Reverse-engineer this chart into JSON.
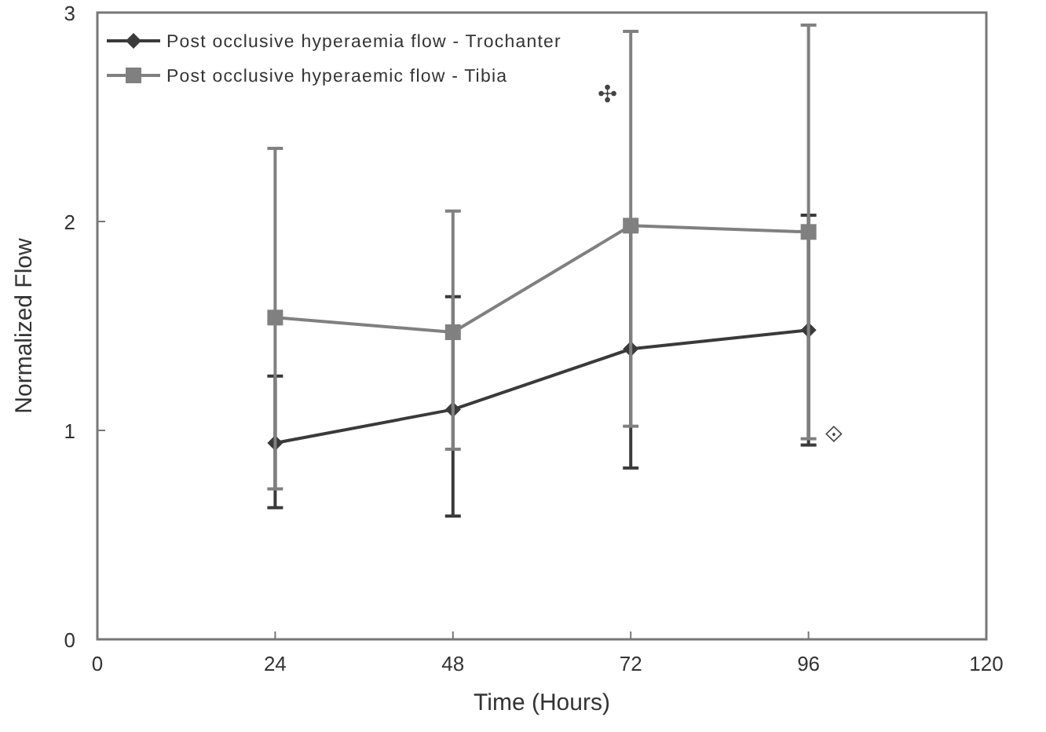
{
  "chart_data": {
    "type": "line",
    "xlabel": "Time (Hours)",
    "ylabel": "Normalized Flow",
    "xlim": [
      0,
      120
    ],
    "xticks": [
      0,
      24,
      48,
      72,
      96,
      120
    ],
    "ylim": [
      0,
      3
    ],
    "yticks": [
      0,
      1,
      2,
      3
    ],
    "x": [
      24,
      48,
      72,
      96
    ],
    "legend": "top left",
    "grid": false,
    "series": [
      {
        "name": "Post occlusive hyperaemia flow - Trochanter",
        "color": "#3a3a3a",
        "marker": "diamond",
        "values": [
          0.94,
          1.1,
          1.39,
          1.48
        ],
        "errors": [
          [
            0.63,
            1.26
          ],
          [
            0.59,
            1.64
          ],
          [
            0.82,
            1.96
          ],
          [
            0.93,
            2.03
          ]
        ]
      },
      {
        "name": "Post occlusive hyperaemic flow - Tibia",
        "color": "#808080",
        "marker": "square",
        "values": [
          1.54,
          1.47,
          1.98,
          1.95
        ],
        "errors": [
          [
            0.72,
            2.35
          ],
          [
            0.91,
            2.05
          ],
          [
            1.02,
            2.91
          ],
          [
            0.96,
            2.94
          ]
        ]
      }
    ],
    "annotations": [
      {
        "text": "✣",
        "x": 72,
        "y": 2.91
      },
      {
        "text": "⟐",
        "x": 96,
        "y": 0.93
      }
    ]
  }
}
